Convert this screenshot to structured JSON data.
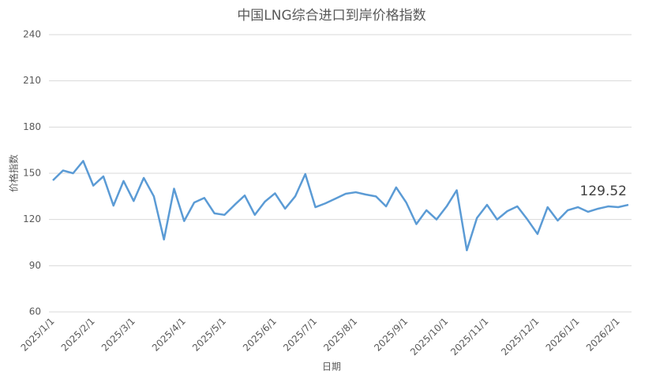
{
  "chart_data": {
    "type": "line",
    "title": "中国LNG综合进口到岸价格指数",
    "x_label": "日期",
    "y_label": "价格指数",
    "categories": [
      "2025/1/1",
      null,
      null,
      null,
      "2025/2/1",
      null,
      null,
      null,
      "2025/3/1",
      null,
      null,
      null,
      null,
      "2025/4/1",
      null,
      null,
      null,
      "2025/5/1",
      null,
      null,
      null,
      null,
      "2025/6/1",
      null,
      null,
      null,
      "2025/7/1",
      null,
      null,
      null,
      "2025/8/1",
      null,
      null,
      null,
      null,
      "2025/9/1",
      null,
      null,
      null,
      "2025/10/1",
      null,
      null,
      null,
      "2025/11/1",
      null,
      null,
      null,
      null,
      "2025/12/1",
      null,
      null,
      null,
      "2026/1/1",
      null,
      null,
      null,
      "2026/2/1",
      null
    ],
    "values": [
      145.4,
      151.8,
      150,
      158,
      142,
      148,
      129,
      145,
      132,
      147,
      135,
      107,
      140,
      119,
      131,
      134,
      124,
      123,
      129.5,
      135.6,
      123,
      131.6,
      137,
      127,
      135,
      149.5,
      128,
      130.5,
      133.6,
      136.7,
      137.7,
      136.2,
      135,
      128.5,
      140.8,
      131,
      117,
      126,
      120,
      128.5,
      139,
      100,
      121,
      129.5,
      120,
      125.4,
      128.5,
      120,
      110.6,
      128,
      119.3,
      126,
      128,
      125,
      127,
      128.5,
      128,
      129.52
    ],
    "color": "#5b9bd5",
    "ylim": [
      60,
      240
    ],
    "yticks": [
      60,
      90,
      120,
      150,
      180,
      210,
      240
    ],
    "grid": true
  }
}
